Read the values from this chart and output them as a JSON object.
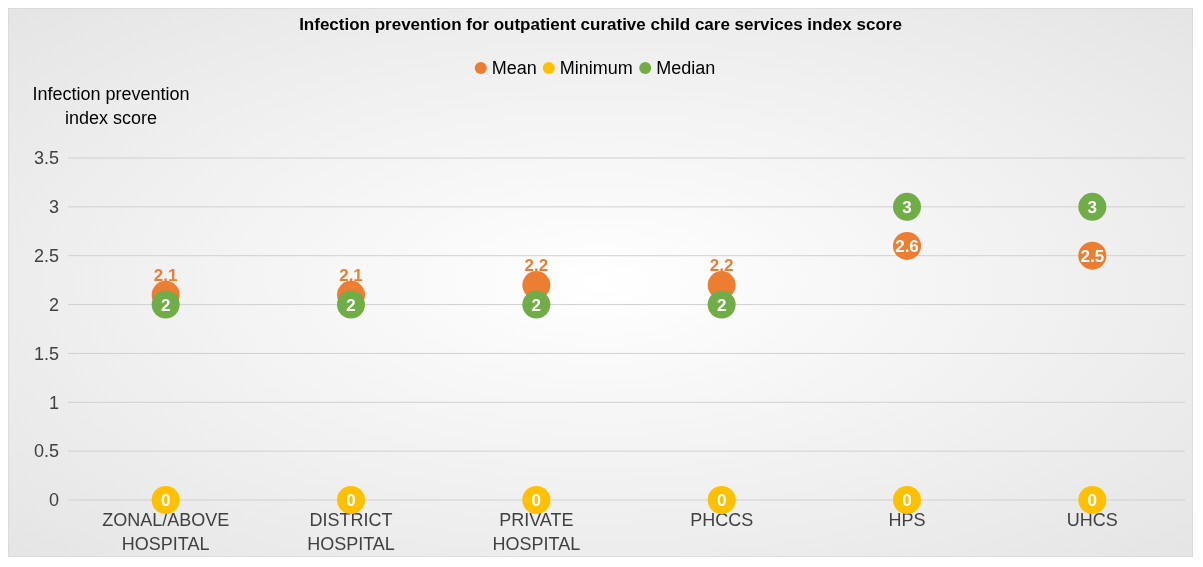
{
  "chart_data": {
    "type": "scatter",
    "title": "Infection prevention for outpatient curative child care services index score",
    "ylabel": "Infection prevention index score",
    "categories": [
      "ZONAL/ABOVE HOSPITAL",
      "DISTRICT HOSPITAL",
      "PRIVATE HOSPITAL",
      "PHCCS",
      "HPS",
      "UHCS"
    ],
    "series": [
      {
        "name": "Mean",
        "color": "#ed7d31",
        "values": [
          2.1,
          2.1,
          2.2,
          2.2,
          2.6,
          2.5
        ]
      },
      {
        "name": "Minimum",
        "color": "#ffc000",
        "values": [
          0,
          0,
          0,
          0,
          0,
          0
        ]
      },
      {
        "name": "Median",
        "color": "#70ad47",
        "values": [
          2,
          2,
          2,
          2,
          3,
          3
        ]
      }
    ],
    "ylim": [
      0,
      3.5
    ],
    "yticks": [
      0,
      0.5,
      1,
      1.5,
      2,
      2.5,
      3,
      3.5
    ],
    "grid": "y",
    "legend": "top",
    "marker": "circle",
    "data_labels": true
  }
}
